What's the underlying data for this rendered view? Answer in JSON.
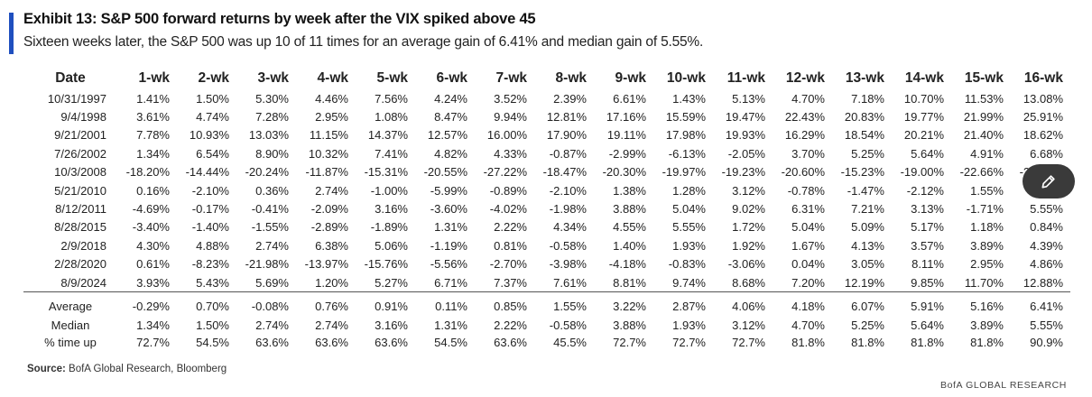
{
  "chart_data": {
    "type": "table",
    "title": "Exhibit 13: S&P 500 forward returns by week after the VIX spiked above 45",
    "subtitle": "Sixteen weeks later, the S&P 500 was up 10 of 11 times for an average gain of 6.41% and median gain of 5.55%.",
    "columns": [
      "Date",
      "1-wk",
      "2-wk",
      "3-wk",
      "4-wk",
      "5-wk",
      "6-wk",
      "7-wk",
      "8-wk",
      "9-wk",
      "10-wk",
      "11-wk",
      "12-wk",
      "13-wk",
      "14-wk",
      "15-wk",
      "16-wk"
    ],
    "rows": [
      [
        "10/31/1997",
        "1.41%",
        "1.50%",
        "5.30%",
        "4.46%",
        "7.56%",
        "4.24%",
        "3.52%",
        "2.39%",
        "6.61%",
        "1.43%",
        "5.13%",
        "4.70%",
        "7.18%",
        "10.70%",
        "11.53%",
        "13.08%"
      ],
      [
        "9/4/1998",
        "3.61%",
        "4.74%",
        "7.28%",
        "2.95%",
        "1.08%",
        "8.47%",
        "9.94%",
        "12.81%",
        "17.16%",
        "15.59%",
        "19.47%",
        "22.43%",
        "20.83%",
        "19.77%",
        "21.99%",
        "25.91%"
      ],
      [
        "9/21/2001",
        "7.78%",
        "10.93%",
        "13.03%",
        "11.15%",
        "14.37%",
        "12.57%",
        "16.00%",
        "17.90%",
        "19.11%",
        "17.98%",
        "19.93%",
        "16.29%",
        "18.54%",
        "20.21%",
        "21.40%",
        "18.62%"
      ],
      [
        "7/26/2002",
        "1.34%",
        "6.54%",
        "8.90%",
        "10.32%",
        "7.41%",
        "4.82%",
        "4.33%",
        "-0.87%",
        "-2.99%",
        "-6.13%",
        "-2.05%",
        "3.70%",
        "5.25%",
        "5.64%",
        "4.91%",
        "6.68%"
      ],
      [
        "10/3/2008",
        "-18.20%",
        "-14.44%",
        "-20.24%",
        "-11.87%",
        "-15.31%",
        "-20.55%",
        "-27.22%",
        "-18.47%",
        "-20.30%",
        "-19.97%",
        "-19.23%",
        "-20.60%",
        "-15.23%",
        "-19.00%",
        "-22.66%",
        "-24.33%"
      ],
      [
        "5/21/2010",
        "0.16%",
        "-2.10%",
        "0.36%",
        "2.74%",
        "-1.00%",
        "-5.99%",
        "-0.89%",
        "-2.10%",
        "1.38%",
        "1.28%",
        "3.12%",
        "-0.78%",
        "-1.47%",
        "-2.12%",
        "1.55%",
        "2.01%"
      ],
      [
        "8/12/2011",
        "-4.69%",
        "-0.17%",
        "-0.41%",
        "-2.09%",
        "3.16%",
        "-3.60%",
        "-4.02%",
        "-1.98%",
        "3.88%",
        "5.04%",
        "9.02%",
        "6.31%",
        "7.21%",
        "3.13%",
        "-1.71%",
        "5.55%"
      ],
      [
        "8/28/2015",
        "-3.40%",
        "-1.40%",
        "-1.55%",
        "-2.89%",
        "-1.89%",
        "1.31%",
        "2.22%",
        "4.34%",
        "4.55%",
        "5.55%",
        "1.72%",
        "5.04%",
        "5.09%",
        "5.17%",
        "1.18%",
        "0.84%"
      ],
      [
        "2/9/2018",
        "4.30%",
        "4.88%",
        "2.74%",
        "6.38%",
        "5.06%",
        "-1.19%",
        "0.81%",
        "-0.58%",
        "1.40%",
        "1.93%",
        "1.92%",
        "1.67%",
        "4.13%",
        "3.57%",
        "3.89%",
        "4.39%"
      ],
      [
        "2/28/2020",
        "0.61%",
        "-8.23%",
        "-21.98%",
        "-13.97%",
        "-15.76%",
        "-5.56%",
        "-2.70%",
        "-3.98%",
        "-4.18%",
        "-0.83%",
        "-3.06%",
        "0.04%",
        "3.05%",
        "8.11%",
        "2.95%",
        "4.86%"
      ],
      [
        "8/9/2024",
        "3.93%",
        "5.43%",
        "5.69%",
        "1.20%",
        "5.27%",
        "6.71%",
        "7.37%",
        "7.61%",
        "8.81%",
        "9.74%",
        "8.68%",
        "7.20%",
        "12.19%",
        "9.85%",
        "11.70%",
        "12.88%"
      ]
    ],
    "summary": [
      [
        "Average",
        "-0.29%",
        "0.70%",
        "-0.08%",
        "0.76%",
        "0.91%",
        "0.11%",
        "0.85%",
        "1.55%",
        "3.22%",
        "2.87%",
        "4.06%",
        "4.18%",
        "6.07%",
        "5.91%",
        "5.16%",
        "6.41%"
      ],
      [
        "Median",
        "1.34%",
        "1.50%",
        "2.74%",
        "2.74%",
        "3.16%",
        "1.31%",
        "2.22%",
        "-0.58%",
        "3.88%",
        "1.93%",
        "3.12%",
        "4.70%",
        "5.25%",
        "5.64%",
        "3.89%",
        "5.55%"
      ],
      [
        "% time up",
        "72.7%",
        "54.5%",
        "63.6%",
        "63.6%",
        "63.6%",
        "54.5%",
        "63.6%",
        "45.5%",
        "72.7%",
        "72.7%",
        "72.7%",
        "81.8%",
        "81.8%",
        "81.8%",
        "81.8%",
        "90.9%"
      ]
    ]
  },
  "source": {
    "label": "Source:",
    "text": "BofA Global Research, Bloomberg"
  },
  "brand": "BofA GLOBAL RESEARCH",
  "overlay_button": {
    "icon": "edit-pencil-icon"
  },
  "colors": {
    "accent": "#1f4fbf",
    "overlay": "#3a3a3a"
  }
}
